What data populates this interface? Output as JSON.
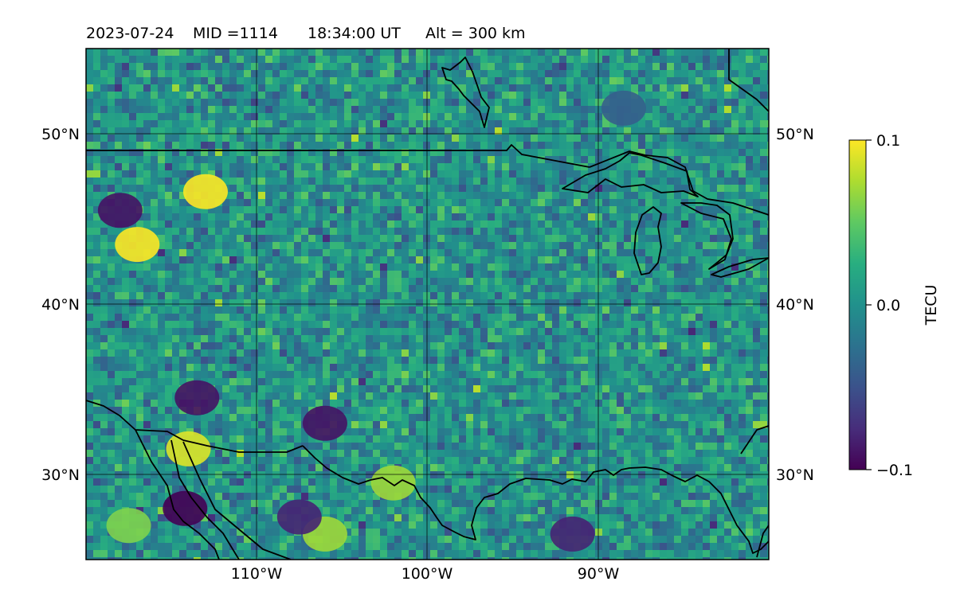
{
  "title": {
    "date": "2023-07-24",
    "mid": "MID =1114",
    "time": "18:34:00  UT",
    "alt": "Alt = 300 km"
  },
  "map": {
    "lat_ticks": [
      "50°N",
      "40°N",
      "30°N"
    ],
    "lon_ticks": [
      "110°W",
      "100°W",
      "90°W"
    ],
    "lon_range_deg": [
      -120,
      -80
    ],
    "lat_range_deg": [
      25,
      55
    ],
    "colormap": "viridis"
  },
  "colorbar": {
    "label": "TECU",
    "ticks": [
      "0.1",
      "0.0",
      "−0.1"
    ],
    "min": -0.1,
    "max": 0.1
  },
  "chart_data": {
    "type": "heatmap",
    "title": "2023-07-24  MID =1114    18:34:00  UT  Alt = 300 km",
    "xlabel": "",
    "ylabel": "",
    "x_ticks": [
      "110°W",
      "100°W",
      "90°W"
    ],
    "y_ticks": [
      "50°N",
      "40°N",
      "30°N"
    ],
    "xlim": [
      -120,
      -80
    ],
    "ylim": [
      25,
      55
    ],
    "value_range": [
      -0.1,
      0.1
    ],
    "colorbar_label": "TECU",
    "grid": true,
    "hotspots": [
      {
        "lon": -117.5,
        "lat": 27,
        "value": 0.06
      },
      {
        "lon": -114,
        "lat": 31.5,
        "value": 0.09
      },
      {
        "lon": -114.2,
        "lat": 28,
        "value": -0.1
      },
      {
        "lon": -113,
        "lat": 46.6,
        "value": 0.1
      },
      {
        "lon": -117,
        "lat": 43.5,
        "value": 0.1
      },
      {
        "lon": -106,
        "lat": 26.5,
        "value": 0.07
      },
      {
        "lon": -107.5,
        "lat": 27.5,
        "value": -0.08
      },
      {
        "lon": -118,
        "lat": 45.5,
        "value": -0.09
      },
      {
        "lon": -113.5,
        "lat": 34.5,
        "value": -0.09
      },
      {
        "lon": -106,
        "lat": 33,
        "value": -0.09
      },
      {
        "lon": -88.5,
        "lat": 51.5,
        "value": -0.04
      },
      {
        "lon": -102,
        "lat": 29.5,
        "value": 0.07
      },
      {
        "lon": -91.5,
        "lat": 26.5,
        "value": -0.08
      }
    ]
  }
}
